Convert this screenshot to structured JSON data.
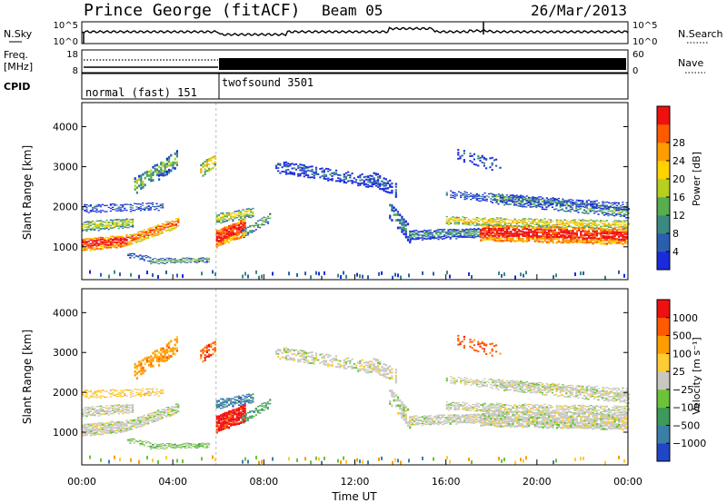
{
  "header": {
    "station": "Prince George (fitACF)",
    "beam": "Beam 05",
    "date": "26/Mar/2013"
  },
  "noise_panel": {
    "left_label": "N.Sky",
    "right_label": "N.Search",
    "ticks_left": [
      "10^5",
      "10^0"
    ],
    "ticks_right": [
      "10^5",
      "10^0"
    ]
  },
  "freq_panel": {
    "left_label_1": "Freq.",
    "left_label_2": "[MHz]",
    "right_label": "Nave",
    "ticks_left": [
      "18",
      "8"
    ],
    "ticks_right": [
      "60",
      "0"
    ]
  },
  "cpid_panel": {
    "label": "CPID",
    "mode1": "normal (fast) 151",
    "mode2": "twofsound 3501"
  },
  "chart_data": [
    {
      "type": "heatmap",
      "title": "",
      "xlabel": "",
      "ylabel": "Slant Range [km]",
      "xlim": [
        "00:00",
        "00:00"
      ],
      "ylim": [
        180,
        4600
      ],
      "yticks": [
        1000,
        2000,
        3000,
        4000
      ],
      "colorbar": {
        "label": "Power [dB]",
        "ticks": [
          "4",
          "8",
          "12",
          "16",
          "20",
          "24",
          "28"
        ],
        "colors": [
          "#1a2bdc",
          "#2a5fb0",
          "#3b8a82",
          "#58ad4f",
          "#b7cf1e",
          "#ffd200",
          "#ff9d00",
          "#ff5a00",
          "#f01010"
        ]
      }
    },
    {
      "type": "heatmap",
      "title": "",
      "xlabel": "Time UT",
      "ylabel": "Slant Range [km]",
      "xlim": [
        "00:00",
        "00:00"
      ],
      "ylim": [
        180,
        4600
      ],
      "yticks": [
        1000,
        2000,
        3000,
        4000
      ],
      "xticks": [
        "00:00",
        "04:00",
        "08:00",
        "12:00",
        "16:00",
        "20:00",
        "00:00"
      ],
      "colorbar": {
        "label": "Velocity [m s⁻¹]",
        "ticks": [
          "1000",
          "500",
          "100",
          "25",
          "−25",
          "−100",
          "−500",
          "−1000"
        ],
        "colors": [
          "#2046c8",
          "#3a7fa8",
          "#3d9a5a",
          "#6cc33a",
          "#c8c8c0",
          "#ffcc33",
          "#ff9d00",
          "#ff5a00",
          "#f01010"
        ]
      }
    }
  ]
}
